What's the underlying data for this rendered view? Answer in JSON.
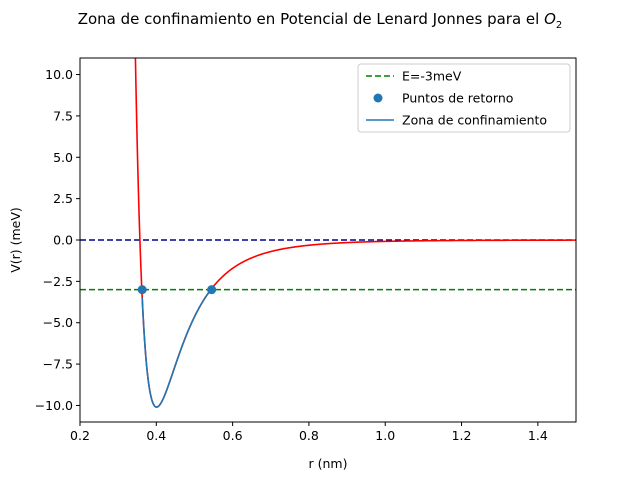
{
  "chart_data": {
    "type": "line",
    "title": "Zona de confinamiento en Potencial de Lenard Jonnes para el",
    "title_math": "O",
    "title_math_sub": "2",
    "xlabel": "r (nm)",
    "ylabel": "V(r) (meV)",
    "xlim": [
      0.2,
      1.5
    ],
    "ylim": [
      -11.0,
      11.0
    ],
    "x_ticks": [
      0.2,
      0.4,
      0.6,
      0.8,
      1.0,
      1.2,
      1.4
    ],
    "x_tick_labels": [
      "0.2",
      "0.4",
      "0.6",
      "0.8",
      "1.0",
      "1.2",
      "1.4"
    ],
    "y_ticks": [
      -10.0,
      -7.5,
      -5.0,
      -2.5,
      0.0,
      2.5,
      5.0,
      7.5,
      10.0
    ],
    "y_tick_labels": [
      "−10.0",
      "−7.5",
      "−5.0",
      "−2.5",
      "0.0",
      "2.5",
      "5.0",
      "7.5",
      "10.0"
    ],
    "grid": false,
    "legend_position": "top-right",
    "potential": {
      "function": "lennard-jones",
      "epsilon_meV": 10.1,
      "sigma_nm": 0.357,
      "color": "#ff0000",
      "x_range": [
        0.34,
        1.5
      ]
    },
    "series": [
      {
        "name": "E=-3meV",
        "kind": "hline",
        "y": -3.0,
        "color": "#008000",
        "style": "dashed"
      },
      {
        "name": "",
        "kind": "hline",
        "y": 0.0,
        "color": "#00008b",
        "style": "dashed"
      },
      {
        "name": "Puntos de retorno",
        "kind": "scatter",
        "x": [
          0.363,
          0.545
        ],
        "y": [
          -3.0,
          -3.0
        ],
        "color": "#1f77b4"
      },
      {
        "name": "Zona de confinamiento",
        "kind": "line",
        "x_range": [
          0.363,
          0.545
        ],
        "color": "#1f77b4"
      }
    ],
    "legend": [
      {
        "label": "E=-3meV",
        "marker": "dashed-line",
        "color": "#008000"
      },
      {
        "label": "Puntos de retorno",
        "marker": "dot",
        "color": "#1f77b4"
      },
      {
        "label": "Zona de confinamiento",
        "marker": "line",
        "color": "#1f77b4"
      }
    ]
  }
}
